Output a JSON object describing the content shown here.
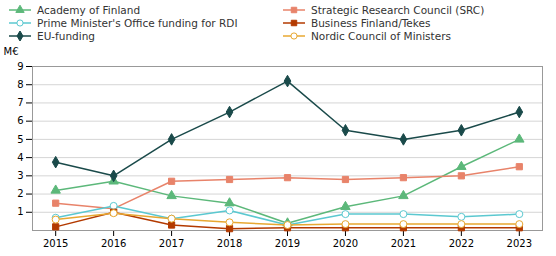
{
  "chart_data": {
    "type": "line",
    "x": [
      2015,
      2016,
      2017,
      2018,
      2019,
      2020,
      2021,
      2022,
      2023
    ],
    "series": [
      {
        "name": "Academy of Finland",
        "color": "#5cb87a",
        "marker": "triangle",
        "values": [
          2.2,
          2.7,
          1.9,
          1.5,
          0.4,
          1.3,
          1.9,
          3.5,
          5.0
        ]
      },
      {
        "name": "Strategic Research Council (SRC)",
        "color": "#e8836a",
        "marker": "square",
        "values": [
          1.5,
          1.2,
          2.7,
          2.8,
          2.9,
          2.8,
          2.9,
          3.0,
          3.5
        ]
      },
      {
        "name": "Prime Minister's Office funding for RDI",
        "color": "#5bc8d0",
        "marker": "open circle",
        "values": [
          0.7,
          1.35,
          0.65,
          1.1,
          0.3,
          0.9,
          0.9,
          0.75,
          0.9
        ]
      },
      {
        "name": "Business Finland/Tekes",
        "color": "#b33a00",
        "marker": "square",
        "values": [
          0.2,
          1.0,
          0.3,
          0.1,
          0.15,
          0.15,
          0.15,
          0.15,
          0.15
        ]
      },
      {
        "name": "EU-funding",
        "color": "#1a4a4a",
        "marker": "diamond",
        "values": [
          3.75,
          3.0,
          5.0,
          6.5,
          8.2,
          5.5,
          5.0,
          5.5,
          6.5
        ]
      },
      {
        "name": "Nordic Council of Ministers",
        "color": "#e8a832",
        "marker": "open circle",
        "values": [
          0.6,
          0.95,
          0.65,
          0.45,
          0.3,
          0.35,
          0.35,
          0.35,
          0.35
        ]
      }
    ],
    "ylabel": "M€",
    "xlim": [
      2014.6,
      2023.4
    ],
    "xticks": [
      2015,
      2016,
      2017,
      2018,
      2019,
      2020,
      2021,
      2022,
      2023
    ],
    "ylim": [
      0,
      9
    ],
    "yticks": [
      1,
      2,
      3,
      4,
      5,
      6,
      7,
      8,
      9
    ],
    "grid": true,
    "legend": "upper left"
  }
}
